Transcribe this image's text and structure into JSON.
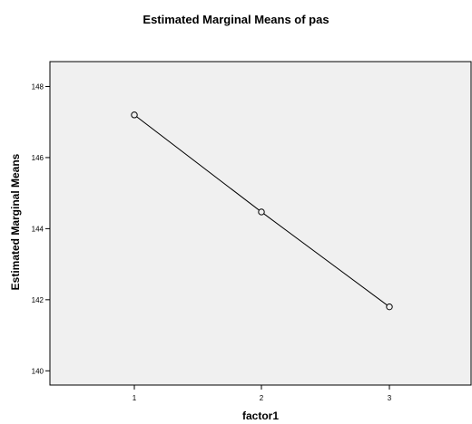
{
  "chart_data": {
    "type": "line",
    "title": "Estimated Marginal Means of pas",
    "xlabel": "factor1",
    "ylabel": "Estimated Marginal Means",
    "categories": [
      "1",
      "2",
      "3"
    ],
    "series": [
      {
        "values": [
          147.2,
          144.47,
          141.8
        ]
      }
    ],
    "ylim": [
      139.6,
      148.7
    ],
    "yticks": [
      "140",
      "142",
      "144",
      "146",
      "148"
    ],
    "grid": false,
    "marker": "hollow-circle",
    "colors": {
      "plot_background": "#f0f0f0",
      "line": "#000000"
    }
  }
}
